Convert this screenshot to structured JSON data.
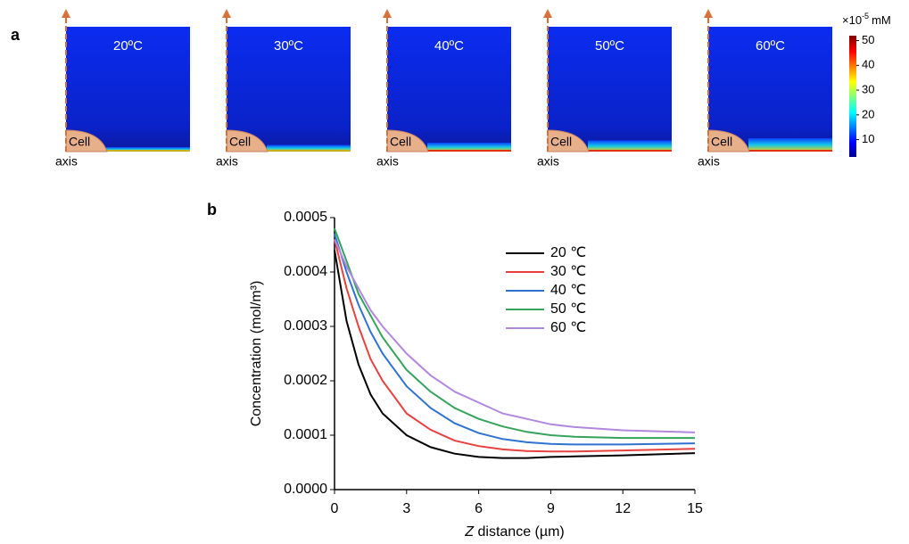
{
  "panel_labels": [
    "a",
    "b"
  ],
  "chart_data": [
    {
      "type": "heatmap",
      "panels": [
        "20ºC",
        "30ºC",
        "40ºC",
        "50ºC",
        "60ºC"
      ],
      "region_label": "Cell",
      "axis_label": "axis",
      "colorbar_label": {
        "base": "×10",
        "exponent": "-5",
        "unit": "mM"
      },
      "colorbar_lim": [
        3,
        52
      ],
      "colorbar_ticks": [
        10,
        20,
        30,
        40,
        50
      ]
    },
    {
      "type": "line",
      "ylabel": "Concentration (mol/m³)",
      "xlabel": {
        "italic": "Z",
        "rest": " distance (µm)"
      },
      "x": [
        0,
        0.5,
        1,
        1.5,
        2,
        3,
        4,
        5,
        6,
        7,
        8,
        9,
        10,
        12,
        15
      ],
      "xlim": [
        0,
        15
      ],
      "xticks": [
        0,
        3,
        6,
        9,
        12,
        15
      ],
      "ylim": [
        0,
        0.0005
      ],
      "yticks": [
        {
          "value": 0,
          "label": "0.0000"
        },
        {
          "value": 0.0001,
          "label": "0.0001"
        },
        {
          "value": 0.0002,
          "label": "0.0002"
        },
        {
          "value": 0.0003,
          "label": "0.0003"
        },
        {
          "value": 0.0004,
          "label": "0.0004"
        },
        {
          "value": 0.0005,
          "label": "0.0005"
        }
      ],
      "series": [
        {
          "name": "20 ℃",
          "color": "#000000",
          "values": [
            0.00044,
            0.00031,
            0.00023,
            0.000175,
            0.00014,
            0.0001,
            7.8e-05,
            6.6e-05,
            6e-05,
            5.8e-05,
            5.8e-05,
            6e-05,
            6.1e-05,
            6.3e-05,
            6.7e-05
          ]
        },
        {
          "name": "30 ℃",
          "color": "#e8413e",
          "values": [
            0.00046,
            0.00037,
            0.0003,
            0.00024,
            0.0002,
            0.00014,
            0.00011,
            9e-05,
            8e-05,
            7.4e-05,
            7.1e-05,
            7e-05,
            7e-05,
            7.2e-05,
            7.5e-05
          ]
        },
        {
          "name": "40 ℃",
          "color": "#2f73d1",
          "values": [
            0.00047,
            0.0004,
            0.00034,
            0.00029,
            0.00025,
            0.00019,
            0.00015,
            0.000122,
            0.000104,
            9.3e-05,
            8.7e-05,
            8.4e-05,
            8.3e-05,
            8.3e-05,
            8.5e-05
          ]
        },
        {
          "name": "50 ℃",
          "color": "#35a35c",
          "values": [
            0.00048,
            0.00042,
            0.00036,
            0.00032,
            0.00028,
            0.00022,
            0.00018,
            0.00015,
            0.00013,
            0.000116,
            0.000106,
            0.0001,
            9.7e-05,
            9.5e-05,
            9.5e-05
          ]
        },
        {
          "name": "60 ℃",
          "color": "#b287e0",
          "values": [
            0.00046,
            0.00041,
            0.00037,
            0.00033,
            0.0003,
            0.00025,
            0.00021,
            0.00018,
            0.00016,
            0.00014,
            0.00013,
            0.00012,
            0.000115,
            0.000109,
            0.000105
          ]
        }
      ]
    }
  ]
}
